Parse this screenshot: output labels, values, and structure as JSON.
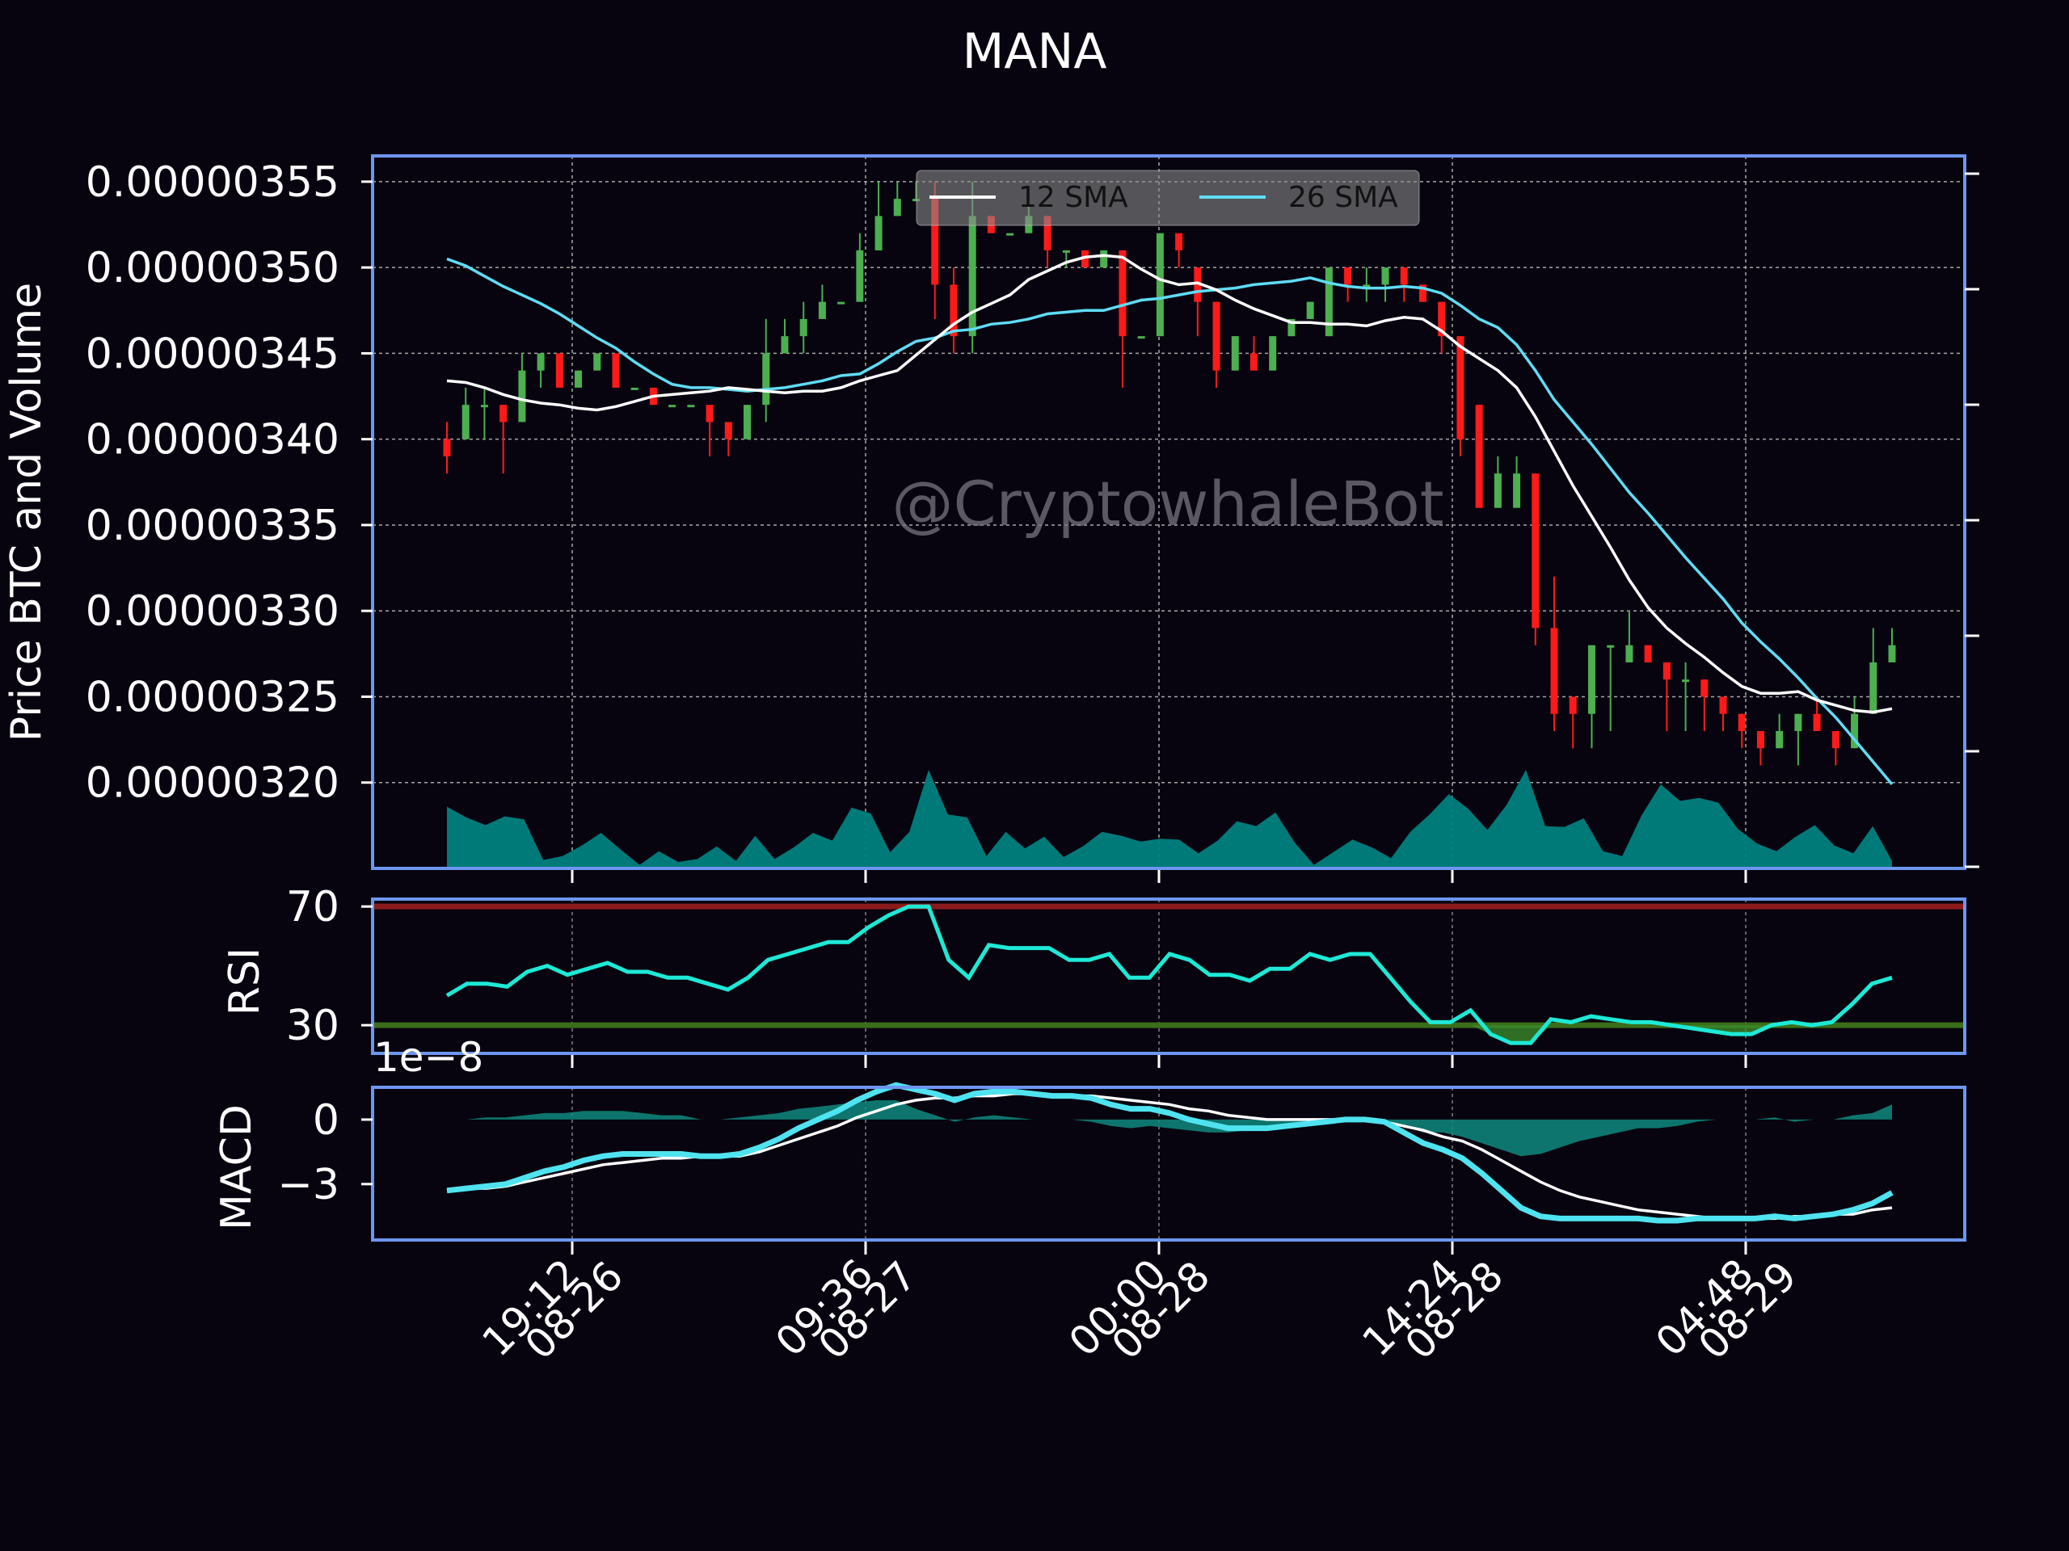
{
  "title": "MANA",
  "watermark": "@CryptowhaleBot",
  "colors": {
    "background": "#07040f",
    "frame": "#6d96f0",
    "up": "#4caf50",
    "down": "#ff1a1a",
    "sma12": "#ffffff",
    "sma26": "#5fdcf5",
    "volume": "#008080",
    "rsi_line": "#1de9d6",
    "rsi_overbought": "#8b1a1a",
    "rsi_oversold": "#3a6e1a",
    "macd_line": "#4fe3f0",
    "macd_signal": "#ffffff",
    "macd_hist": "#0e8a7e"
  },
  "chart_data": [
    {
      "type": "candlestick",
      "panel": "price",
      "ylabel": "Price BTC and Volume",
      "ylim": [
        3.15e-06,
        3.565e-06
      ],
      "y_ticks": [
        "0.00000355",
        "0.00000350",
        "0.00000345",
        "0.00000340",
        "0.00000335",
        "0.00000330",
        "0.00000325",
        "0.00000320"
      ],
      "y_tick_values": [
        3.55e-06,
        3.5e-06,
        3.45e-06,
        3.4e-06,
        3.35e-06,
        3.3e-06,
        3.25e-06,
        3.2e-06
      ],
      "x_tick_labels": [
        [
          "19:12",
          "08-26"
        ],
        [
          "09:36",
          "08-27"
        ],
        [
          "00:00",
          "08-28"
        ],
        [
          "14:24",
          "08-28"
        ],
        [
          "04:48",
          "08-29"
        ]
      ],
      "legend": [
        "12 SMA",
        "26 SMA"
      ],
      "legend_position": "top-center",
      "grid": true,
      "candles": [
        [
          3.4,
          3.39,
          3.41,
          3.38
        ],
        [
          3.4,
          3.42,
          3.43,
          3.4
        ],
        [
          3.42,
          3.42,
          3.43,
          3.4
        ],
        [
          3.42,
          3.41,
          3.42,
          3.38
        ],
        [
          3.41,
          3.44,
          3.45,
          3.41
        ],
        [
          3.44,
          3.45,
          3.45,
          3.43
        ],
        [
          3.45,
          3.43,
          3.45,
          3.43
        ],
        [
          3.43,
          3.44,
          3.44,
          3.43
        ],
        [
          3.44,
          3.45,
          3.45,
          3.44
        ],
        [
          3.45,
          3.43,
          3.45,
          3.43
        ],
        [
          3.43,
          3.43,
          3.43,
          3.43
        ],
        [
          3.43,
          3.42,
          3.43,
          3.42
        ],
        [
          3.42,
          3.42,
          3.42,
          3.42
        ],
        [
          3.42,
          3.42,
          3.42,
          3.42
        ],
        [
          3.42,
          3.41,
          3.42,
          3.39
        ],
        [
          3.41,
          3.4,
          3.41,
          3.39
        ],
        [
          3.4,
          3.42,
          3.42,
          3.4
        ],
        [
          3.42,
          3.45,
          3.47,
          3.41
        ],
        [
          3.45,
          3.46,
          3.47,
          3.45
        ],
        [
          3.46,
          3.47,
          3.48,
          3.45
        ],
        [
          3.47,
          3.48,
          3.49,
          3.47
        ],
        [
          3.48,
          3.48,
          3.48,
          3.48
        ],
        [
          3.48,
          3.51,
          3.52,
          3.48
        ],
        [
          3.51,
          3.53,
          3.55,
          3.51
        ],
        [
          3.53,
          3.54,
          3.55,
          3.53
        ],
        [
          3.54,
          3.54,
          3.55,
          3.54
        ],
        [
          3.54,
          3.49,
          3.55,
          3.47
        ],
        [
          3.49,
          3.46,
          3.5,
          3.45
        ],
        [
          3.46,
          3.53,
          3.55,
          3.45
        ],
        [
          3.53,
          3.52,
          3.53,
          3.52
        ],
        [
          3.52,
          3.52,
          3.52,
          3.52
        ],
        [
          3.52,
          3.53,
          3.54,
          3.52
        ],
        [
          3.53,
          3.51,
          3.53,
          3.5
        ],
        [
          3.51,
          3.51,
          3.51,
          3.5
        ],
        [
          3.51,
          3.5,
          3.51,
          3.5
        ],
        [
          3.5,
          3.51,
          3.51,
          3.5
        ],
        [
          3.51,
          3.46,
          3.51,
          3.43
        ],
        [
          3.46,
          3.46,
          3.46,
          3.46
        ],
        [
          3.46,
          3.52,
          3.52,
          3.46
        ],
        [
          3.52,
          3.51,
          3.51,
          3.5
        ],
        [
          3.5,
          3.48,
          3.5,
          3.46
        ],
        [
          3.48,
          3.44,
          3.48,
          3.43
        ],
        [
          3.44,
          3.46,
          3.46,
          3.44
        ],
        [
          3.45,
          3.44,
          3.46,
          3.44
        ],
        [
          3.44,
          3.46,
          3.46,
          3.44
        ],
        [
          3.46,
          3.47,
          3.47,
          3.46
        ],
        [
          3.47,
          3.48,
          3.48,
          3.47
        ],
        [
          3.46,
          3.5,
          3.5,
          3.46
        ],
        [
          3.5,
          3.49,
          3.5,
          3.48
        ],
        [
          3.49,
          3.49,
          3.5,
          3.48
        ],
        [
          3.49,
          3.5,
          3.5,
          3.48
        ],
        [
          3.5,
          3.49,
          3.5,
          3.48
        ],
        [
          3.49,
          3.48,
          3.49,
          3.48
        ],
        [
          3.48,
          3.46,
          3.48,
          3.45
        ],
        [
          3.46,
          3.4,
          3.46,
          3.39
        ],
        [
          3.42,
          3.36,
          3.42,
          3.36
        ],
        [
          3.36,
          3.38,
          3.39,
          3.36
        ],
        [
          3.36,
          3.38,
          3.39,
          3.36
        ],
        [
          3.38,
          3.29,
          3.38,
          3.28
        ],
        [
          3.29,
          3.24,
          3.32,
          3.23
        ],
        [
          3.25,
          3.24,
          3.25,
          3.22
        ],
        [
          3.24,
          3.28,
          3.28,
          3.22
        ],
        [
          3.28,
          3.28,
          3.28,
          3.23
        ],
        [
          3.27,
          3.28,
          3.3,
          3.27
        ],
        [
          3.28,
          3.27,
          3.28,
          3.27
        ],
        [
          3.27,
          3.26,
          3.27,
          3.23
        ],
        [
          3.26,
          3.26,
          3.27,
          3.23
        ],
        [
          3.26,
          3.25,
          3.26,
          3.23
        ],
        [
          3.25,
          3.24,
          3.25,
          3.23
        ],
        [
          3.24,
          3.23,
          3.24,
          3.22
        ],
        [
          3.23,
          3.22,
          3.23,
          3.21
        ],
        [
          3.22,
          3.23,
          3.24,
          3.22
        ],
        [
          3.23,
          3.24,
          3.24,
          3.21
        ],
        [
          3.24,
          3.23,
          3.25,
          3.23
        ],
        [
          3.23,
          3.22,
          3.23,
          3.21
        ],
        [
          3.22,
          3.24,
          3.25,
          3.22
        ],
        [
          3.24,
          3.27,
          3.29,
          3.24
        ],
        [
          3.27,
          3.28,
          3.29,
          3.27
        ]
      ],
      "candle_columns": [
        "open",
        "close",
        "high",
        "low"
      ],
      "candle_unit": 1e-06,
      "sma12": [
        3.434,
        3.433,
        3.43,
        3.426,
        3.423,
        3.421,
        3.42,
        3.418,
        3.417,
        3.419,
        3.422,
        3.425,
        3.426,
        3.427,
        3.428,
        3.43,
        3.429,
        3.428,
        3.427,
        3.428,
        3.428,
        3.43,
        3.434,
        3.437,
        3.44,
        3.449,
        3.458,
        3.467,
        3.474,
        3.479,
        3.484,
        3.493,
        3.498,
        3.503,
        3.506,
        3.507,
        3.506,
        3.499,
        3.493,
        3.49,
        3.491,
        3.487,
        3.481,
        3.476,
        3.472,
        3.468,
        3.468,
        3.467,
        3.467,
        3.466,
        3.469,
        3.471,
        3.47,
        3.463,
        3.454,
        3.447,
        3.44,
        3.43,
        3.413,
        3.393,
        3.373,
        3.355,
        3.337,
        3.318,
        3.302,
        3.29,
        3.281,
        3.273,
        3.264,
        3.256,
        3.252,
        3.252,
        3.253,
        3.248,
        3.245,
        3.242,
        3.241,
        3.243
      ],
      "sma26": [
        3.505,
        3.501,
        3.495,
        3.489,
        3.484,
        3.479,
        3.473,
        3.466,
        3.459,
        3.453,
        3.445,
        3.438,
        3.432,
        3.43,
        3.43,
        3.429,
        3.428,
        3.429,
        3.43,
        3.432,
        3.434,
        3.437,
        3.438,
        3.444,
        3.451,
        3.457,
        3.459,
        3.463,
        3.464,
        3.467,
        3.468,
        3.47,
        3.473,
        3.474,
        3.475,
        3.475,
        3.478,
        3.481,
        3.482,
        3.484,
        3.486,
        3.487,
        3.488,
        3.49,
        3.491,
        3.492,
        3.494,
        3.491,
        3.489,
        3.488,
        3.488,
        3.489,
        3.488,
        3.485,
        3.478,
        3.47,
        3.465,
        3.455,
        3.44,
        3.423,
        3.41,
        3.397,
        3.383,
        3.369,
        3.357,
        3.344,
        3.331,
        3.319,
        3.307,
        3.293,
        3.282,
        3.272,
        3.261,
        3.249,
        3.238,
        3.225,
        3.212,
        3.199
      ],
      "volume_relative": [
        0.62,
        0.51,
        0.43,
        0.52,
        0.49,
        0.07,
        0.11,
        0.22,
        0.35,
        0.18,
        0.02,
        0.16,
        0.05,
        0.08,
        0.21,
        0.06,
        0.32,
        0.08,
        0.2,
        0.35,
        0.27,
        0.61,
        0.55,
        0.15,
        0.36,
        1.0,
        0.54,
        0.51,
        0.11,
        0.36,
        0.19,
        0.31,
        0.1,
        0.21,
        0.36,
        0.32,
        0.26,
        0.29,
        0.28,
        0.14,
        0.27,
        0.47,
        0.42,
        0.56,
        0.25,
        0.02,
        0.15,
        0.28,
        0.2,
        0.09,
        0.36,
        0.54,
        0.75,
        0.6,
        0.38,
        0.64,
        1.0,
        0.42,
        0.41,
        0.5,
        0.16,
        0.11,
        0.53,
        0.85,
        0.68,
        0.71,
        0.66,
        0.39,
        0.24,
        0.16,
        0.31,
        0.43,
        0.22,
        0.14,
        0.42,
        0.06
      ]
    },
    {
      "type": "line",
      "panel": "rsi",
      "ylabel": "RSI",
      "ylim": [
        20.5,
        72.5
      ],
      "y_ticks": [
        "70",
        "30"
      ],
      "y_tick_values": [
        70,
        30
      ],
      "overbought": 70,
      "oversold": 30,
      "values": [
        40,
        44,
        44,
        43,
        48,
        50,
        47,
        49,
        51,
        48,
        48,
        46,
        46,
        44,
        42,
        46,
        52,
        54,
        56,
        58,
        58,
        63,
        67,
        70,
        70,
        52,
        46,
        57,
        56,
        56,
        56,
        52,
        52,
        54,
        46,
        46,
        54,
        52,
        47,
        47,
        45,
        49,
        49,
        54,
        52,
        54,
        54,
        46,
        38,
        31,
        31,
        35,
        27,
        24,
        24,
        32,
        31,
        33,
        32,
        31,
        31,
        30,
        29,
        28,
        27,
        27,
        30,
        31,
        30,
        31,
        37,
        44,
        46
      ],
      "fill_below_oversold": true
    },
    {
      "type": "line",
      "panel": "macd",
      "ylabel": "MACD",
      "scale_label": "1e−8",
      "ylim": [
        -5.6,
        1.5
      ],
      "y_ticks": [
        "0",
        "−3"
      ],
      "y_tick_values": [
        0,
        -3
      ],
      "macd": [
        -3.3,
        -3.2,
        -3.1,
        -3.0,
        -2.7,
        -2.4,
        -2.2,
        -1.9,
        -1.7,
        -1.6,
        -1.6,
        -1.6,
        -1.6,
        -1.7,
        -1.7,
        -1.6,
        -1.3,
        -0.9,
        -0.4,
        0.0,
        0.4,
        0.9,
        1.3,
        1.6,
        1.4,
        1.2,
        0.9,
        1.2,
        1.3,
        1.3,
        1.2,
        1.1,
        1.1,
        1.0,
        0.7,
        0.5,
        0.5,
        0.3,
        0.0,
        -0.2,
        -0.4,
        -0.4,
        -0.4,
        -0.3,
        -0.2,
        -0.1,
        0.0,
        0.0,
        -0.1,
        -0.6,
        -1.1,
        -1.4,
        -1.8,
        -2.5,
        -3.3,
        -4.1,
        -4.5,
        -4.6,
        -4.6,
        -4.6,
        -4.6,
        -4.6,
        -4.7,
        -4.7,
        -4.6,
        -4.6,
        -4.6,
        -4.6,
        -4.5,
        -4.6,
        -4.5,
        -4.4,
        -4.2,
        -3.9,
        -3.4
      ],
      "signal": [
        -3.3,
        -3.2,
        -3.2,
        -3.1,
        -2.9,
        -2.7,
        -2.5,
        -2.3,
        -2.1,
        -2.0,
        -1.9,
        -1.8,
        -1.8,
        -1.7,
        -1.7,
        -1.7,
        -1.5,
        -1.2,
        -0.9,
        -0.6,
        -0.3,
        0.1,
        0.4,
        0.7,
        0.9,
        1.0,
        1.0,
        1.1,
        1.1,
        1.2,
        1.2,
        1.1,
        1.1,
        1.1,
        1.0,
        0.9,
        0.8,
        0.7,
        0.5,
        0.4,
        0.2,
        0.1,
        0.0,
        0.0,
        0.0,
        0.0,
        0.0,
        0.0,
        -0.1,
        -0.3,
        -0.5,
        -0.8,
        -1.0,
        -1.4,
        -1.9,
        -2.4,
        -2.9,
        -3.3,
        -3.6,
        -3.8,
        -4.0,
        -4.2,
        -4.3,
        -4.4,
        -4.5,
        -4.6,
        -4.6,
        -4.6,
        -4.6,
        -4.5,
        -4.5,
        -4.4,
        -4.4,
        -4.2,
        -4.1
      ]
    }
  ]
}
